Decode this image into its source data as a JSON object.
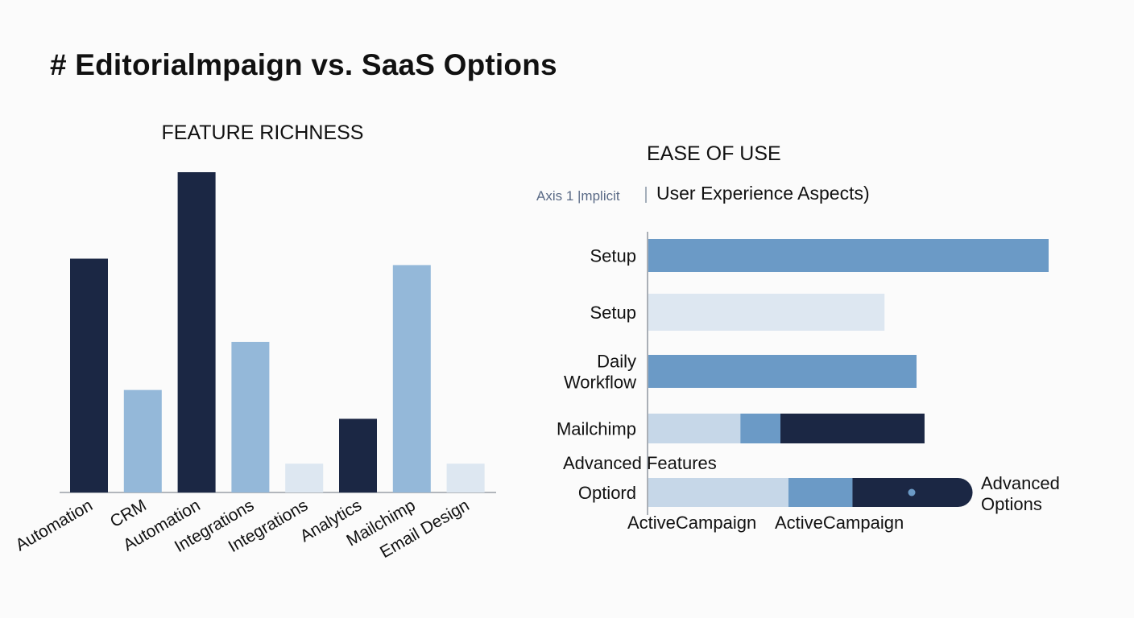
{
  "header": {
    "title": "# Editorialmpaign vs. SaaS Options"
  },
  "colors": {
    "navy": "#1b2744",
    "mid": "#6b9ac6",
    "light": "#94b8d9",
    "pale": "#dde7f1",
    "paler": "#c6d7e8"
  },
  "chart_data": [
    {
      "type": "bar",
      "title": "FEATURE RICHNESS",
      "categories": [
        "Automation",
        "CRM",
        "Automation",
        "Integrations",
        "Integrations",
        "Analytics",
        "Mailchimp",
        "Email Design"
      ],
      "values": [
        73,
        32,
        100,
        47,
        9,
        23,
        71,
        9
      ],
      "bar_colors": [
        "navy",
        "light",
        "navy",
        "light",
        "pale",
        "navy",
        "light",
        "pale"
      ],
      "ylim": [
        0,
        100
      ]
    },
    {
      "type": "bar",
      "orientation": "horizontal",
      "stacked": true,
      "title": "EASE OF USE",
      "axis_note": "Axis 1 |mplicit",
      "axis_subtitle": "User Experience Aspects)",
      "rows": [
        {
          "labels": [
            "Setup"
          ],
          "segments": [
            {
              "value": 100,
              "color": "mid"
            }
          ]
        },
        {
          "labels": [
            "Setup"
          ],
          "segments": [
            {
              "value": 59,
              "color": "pale"
            }
          ]
        },
        {
          "labels": [
            "Daily",
            "Workflow"
          ],
          "segments": [
            {
              "value": 67,
              "color": "mid"
            }
          ]
        },
        {
          "labels": [
            "Mailchimp"
          ],
          "segments": [
            {
              "value": 23,
              "color": "paler"
            },
            {
              "value": 10,
              "color": "mid"
            },
            {
              "value": 36,
              "color": "navy"
            }
          ]
        },
        {
          "labels": [
            "Optiord"
          ],
          "segments": [
            {
              "value": 35,
              "color": "paler"
            },
            {
              "value": 16,
              "color": "mid"
            },
            {
              "value": 30,
              "color": "navy"
            }
          ],
          "end_label": [
            "Advanced",
            "Options"
          ]
        }
      ],
      "group_label": "Advanced Features",
      "bottom_labels": [
        "ActiveCampaign",
        "ActiveCampaign"
      ],
      "xlim": [
        0,
        100
      ]
    }
  ]
}
